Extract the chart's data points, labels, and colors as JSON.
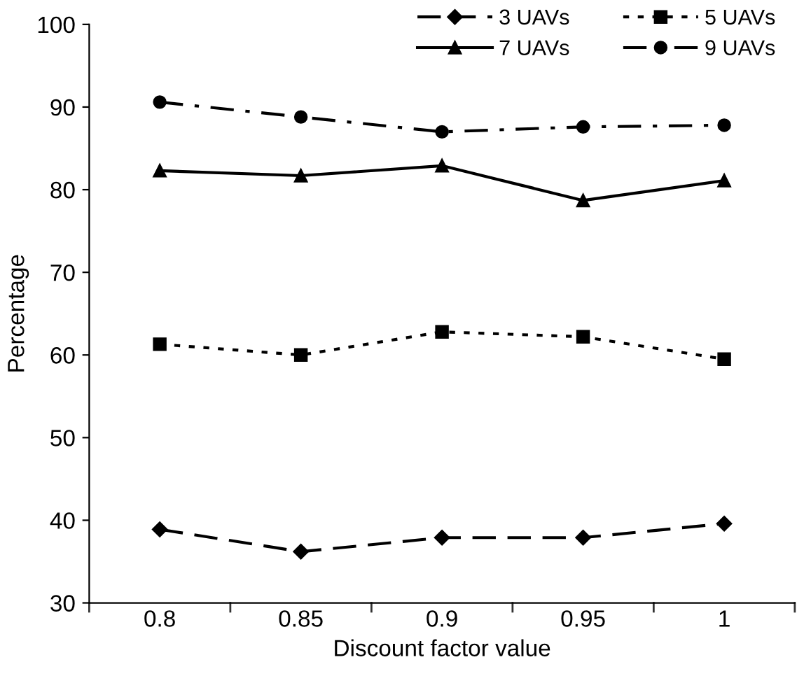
{
  "chart_data": {
    "type": "line",
    "xlabel": "Discount factor value",
    "ylabel": "Percentage",
    "categories": [
      "0.8",
      "0.85",
      "0.9",
      "0.95",
      "1"
    ],
    "ylim": [
      30,
      100
    ],
    "yticks": [
      30,
      40,
      50,
      60,
      70,
      80,
      90,
      100
    ],
    "grid": false,
    "legend": "top right",
    "series": [
      {
        "name": "3 UAVs",
        "color": "#000000",
        "marker": "diamond",
        "line_style": "dashed",
        "values": [
          38.9,
          36.2,
          37.9,
          37.9,
          39.6
        ]
      },
      {
        "name": "5 UAVs",
        "color": "#000000",
        "marker": "square",
        "line_style": "dotted",
        "values": [
          61.3,
          60.0,
          62.8,
          62.2,
          59.5
        ]
      },
      {
        "name": "7 UAVs",
        "color": "#000000",
        "marker": "triangle",
        "line_style": "solid",
        "values": [
          82.3,
          81.7,
          82.9,
          78.7,
          81.1
        ]
      },
      {
        "name": "9 UAVs",
        "color": "#000000",
        "marker": "circle",
        "line_style": "dashdot",
        "values": [
          90.6,
          88.8,
          87.0,
          87.6,
          87.8
        ]
      }
    ]
  }
}
